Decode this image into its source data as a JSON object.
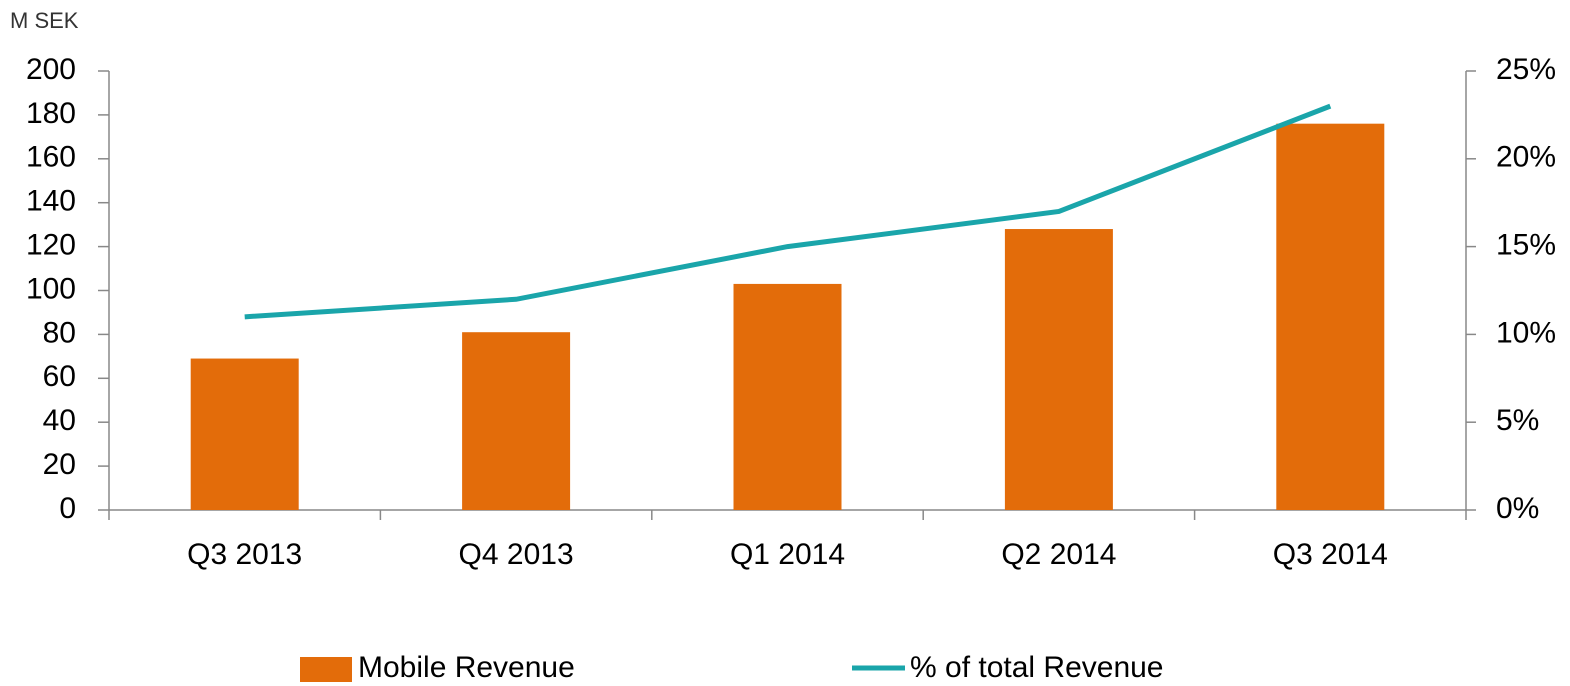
{
  "chart_data": {
    "type": "bar",
    "y_axis_label": "M SEK",
    "categories": [
      "Q3 2013",
      "Q4 2013",
      "Q1 2014",
      "Q2 2014",
      "Q3 2014"
    ],
    "series": [
      {
        "name": "Mobile Revenue",
        "color": "#e36c0a",
        "type": "bar",
        "values": [
          69,
          81,
          103,
          128,
          176
        ]
      },
      {
        "name": "% of total Revenue",
        "color": "#1aa5aa",
        "type": "line",
        "axis": "y2",
        "values": [
          11,
          12,
          15,
          17,
          23
        ]
      }
    ],
    "ylim": [
      0,
      200
    ],
    "yticks": [
      0,
      20,
      40,
      60,
      80,
      100,
      120,
      140,
      160,
      180,
      200
    ],
    "y2lim": [
      0,
      25
    ],
    "y2ticks": [
      {
        "value": 0,
        "label": "0%"
      },
      {
        "value": 5,
        "label": "5%"
      },
      {
        "value": 10,
        "label": "10%"
      },
      {
        "value": 15,
        "label": "15%"
      },
      {
        "value": 20,
        "label": "20%"
      },
      {
        "value": 25,
        "label": "25%"
      }
    ],
    "grid": false,
    "legend": "bottom"
  }
}
